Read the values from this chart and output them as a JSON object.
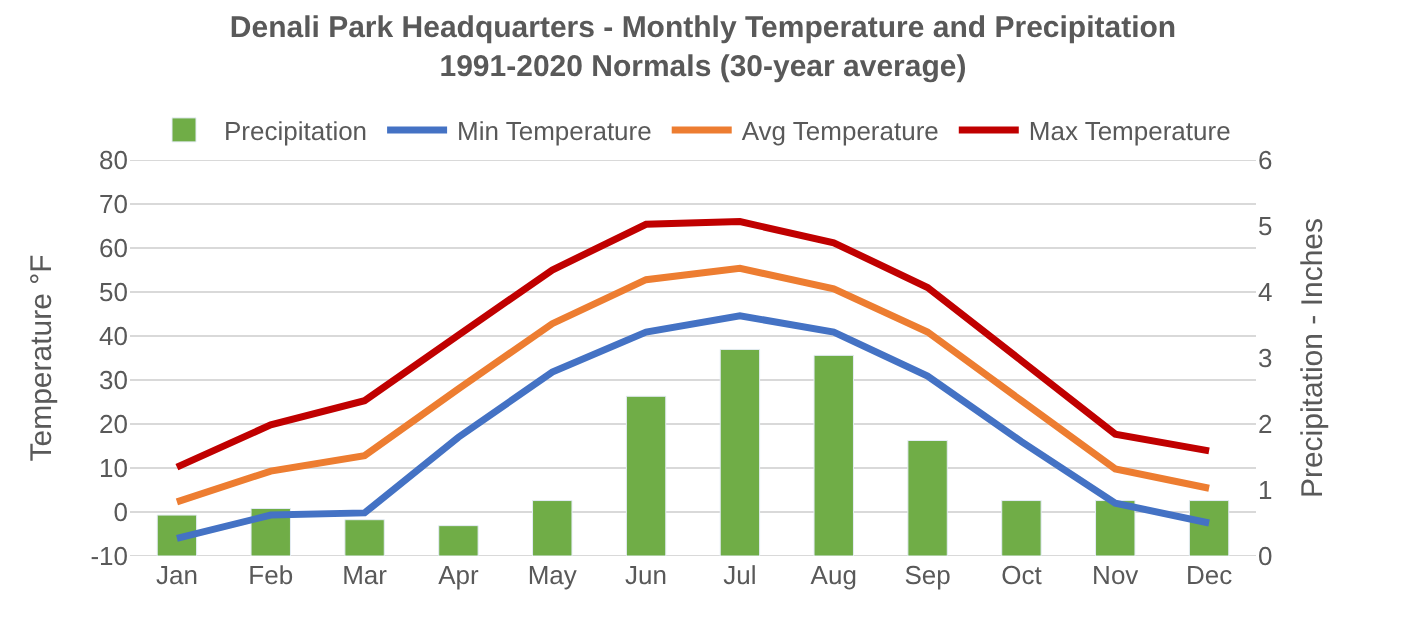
{
  "chart_data": {
    "type": "line",
    "title": "Denali Park Headquarters - Monthly Temperature and Precipitation\n1991-2020 Normals (30-year average)",
    "ylabel": "Temperature °F",
    "y2label": "Precipitation - Inches",
    "categories": [
      "Jan",
      "Feb",
      "Mar",
      "Apr",
      "May",
      "Jun",
      "Jul",
      "Aug",
      "Sep",
      "Oct",
      "Nov",
      "Dec"
    ],
    "series": [
      {
        "name": "Precipitation",
        "type": "bar",
        "axis": "y2",
        "color": "#70ad47",
        "values": [
          0.62,
          0.72,
          0.55,
          0.46,
          0.84,
          2.42,
          3.13,
          3.04,
          1.75,
          0.84,
          0.84,
          0.84
        ]
      },
      {
        "name": "Min Temperature",
        "color": "#4472c4",
        "values": [
          -6,
          -0.7,
          -0.2,
          17,
          31.8,
          40.9,
          44.6,
          40.9,
          30.9,
          16,
          2,
          -2.5
        ]
      },
      {
        "name": "Avg Temperature",
        "color": "#ed7d31",
        "values": [
          2.3,
          9.3,
          12.8,
          28,
          42.8,
          52.8,
          55.4,
          50.7,
          40.9,
          25.3,
          9.8,
          5.4
        ]
      },
      {
        "name": "Max Temperature",
        "color": "#c00000",
        "values": [
          10.2,
          19.8,
          25.3,
          40.2,
          55,
          65.4,
          66,
          61.2,
          51,
          34.4,
          17.7,
          13.9
        ]
      }
    ],
    "ylim": [
      -10,
      80
    ],
    "yticks": [
      -10,
      0,
      10,
      20,
      30,
      40,
      50,
      60,
      70,
      80
    ],
    "y2lim": [
      0,
      6
    ],
    "y2ticks": [
      0,
      1,
      2,
      3,
      4,
      5,
      6
    ],
    "grid": "y",
    "legend": "top",
    "marker": "none",
    "line_style": "solid"
  }
}
